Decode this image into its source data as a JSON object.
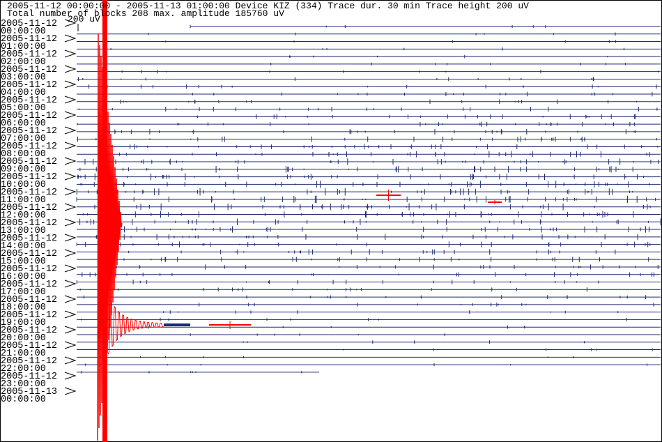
{
  "header": {
    "line1": "2005-11-12 00:00:00 - 2005-11-13 01:00:00  Device  KIZ (334)  Trace dur. 30 min  Trace height 200 uV",
    "line2": "Total number of blocks 208 max. amplitude 185760 uV"
  },
  "scale_label": "200 uV",
  "rows": [
    {
      "date": "2005-11-12",
      "time": "00:00:00"
    },
    {
      "date": "2005-11-12",
      "time": "01:00:00"
    },
    {
      "date": "2005-11-12",
      "time": "02:00:00"
    },
    {
      "date": "2005-11-12",
      "time": "03:00:00"
    },
    {
      "date": "2005-11-12",
      "time": "04:00:00"
    },
    {
      "date": "2005-11-12",
      "time": "05:00:00"
    },
    {
      "date": "2005-11-12",
      "time": "06:00:00"
    },
    {
      "date": "2005-11-12",
      "time": "07:00:00"
    },
    {
      "date": "2005-11-12",
      "time": "08:00:00"
    },
    {
      "date": "2005-11-12",
      "time": "09:00:00"
    },
    {
      "date": "2005-11-12",
      "time": "10:00:00"
    },
    {
      "date": "2005-11-12",
      "time": "11:00:00"
    },
    {
      "date": "2005-11-12",
      "time": "12:00:00"
    },
    {
      "date": "2005-11-12",
      "time": "13:00:00"
    },
    {
      "date": "2005-11-12",
      "time": "14:00:00"
    },
    {
      "date": "2005-11-12",
      "time": "15:00:00"
    },
    {
      "date": "2005-11-12",
      "time": "16:00:00"
    },
    {
      "date": "2005-11-12",
      "time": "17:00:00"
    },
    {
      "date": "2005-11-12",
      "time": "18:00:00"
    },
    {
      "date": "2005-11-12",
      "time": "19:00:00"
    },
    {
      "date": "2005-11-12",
      "time": "20:00:00"
    },
    {
      "date": "2005-11-12",
      "time": "21:00:00"
    },
    {
      "date": "2005-11-12",
      "time": "22:00:00"
    },
    {
      "date": "2005-11-12",
      "time": "23:00:00"
    },
    {
      "date": "2005-11-13",
      "time": "00:00:00"
    }
  ]
}
